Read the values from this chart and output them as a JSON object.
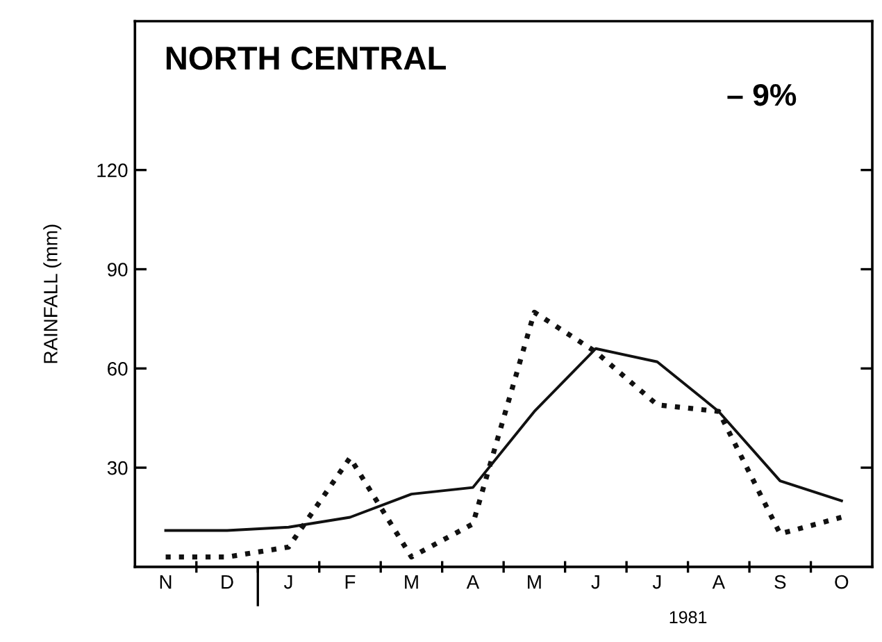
{
  "chart_data": {
    "type": "line",
    "title": "NORTH CENTRAL",
    "ylabel": "RAINFALL (mm)",
    "categories": [
      "N",
      "D",
      "J",
      "F",
      "M",
      "A",
      "M",
      "J",
      "J",
      "A",
      "S",
      "O"
    ],
    "series": [
      {
        "color": "#111111",
        "line_style": "solid",
        "values": [
          11,
          11,
          12,
          15,
          22,
          24,
          47,
          66,
          62,
          47,
          26,
          20
        ]
      },
      {
        "color": "#111111",
        "line_style": "dotted",
        "values": [
          3,
          3,
          6,
          33,
          3,
          13,
          77,
          65,
          49,
          47,
          10,
          15
        ]
      }
    ],
    "ylim": [
      0,
      165
    ],
    "yticks": [
      30,
      60,
      90,
      120
    ],
    "grid": false,
    "legend": false,
    "marker": "none",
    "annotations": [
      "– 9%",
      "1981"
    ]
  }
}
